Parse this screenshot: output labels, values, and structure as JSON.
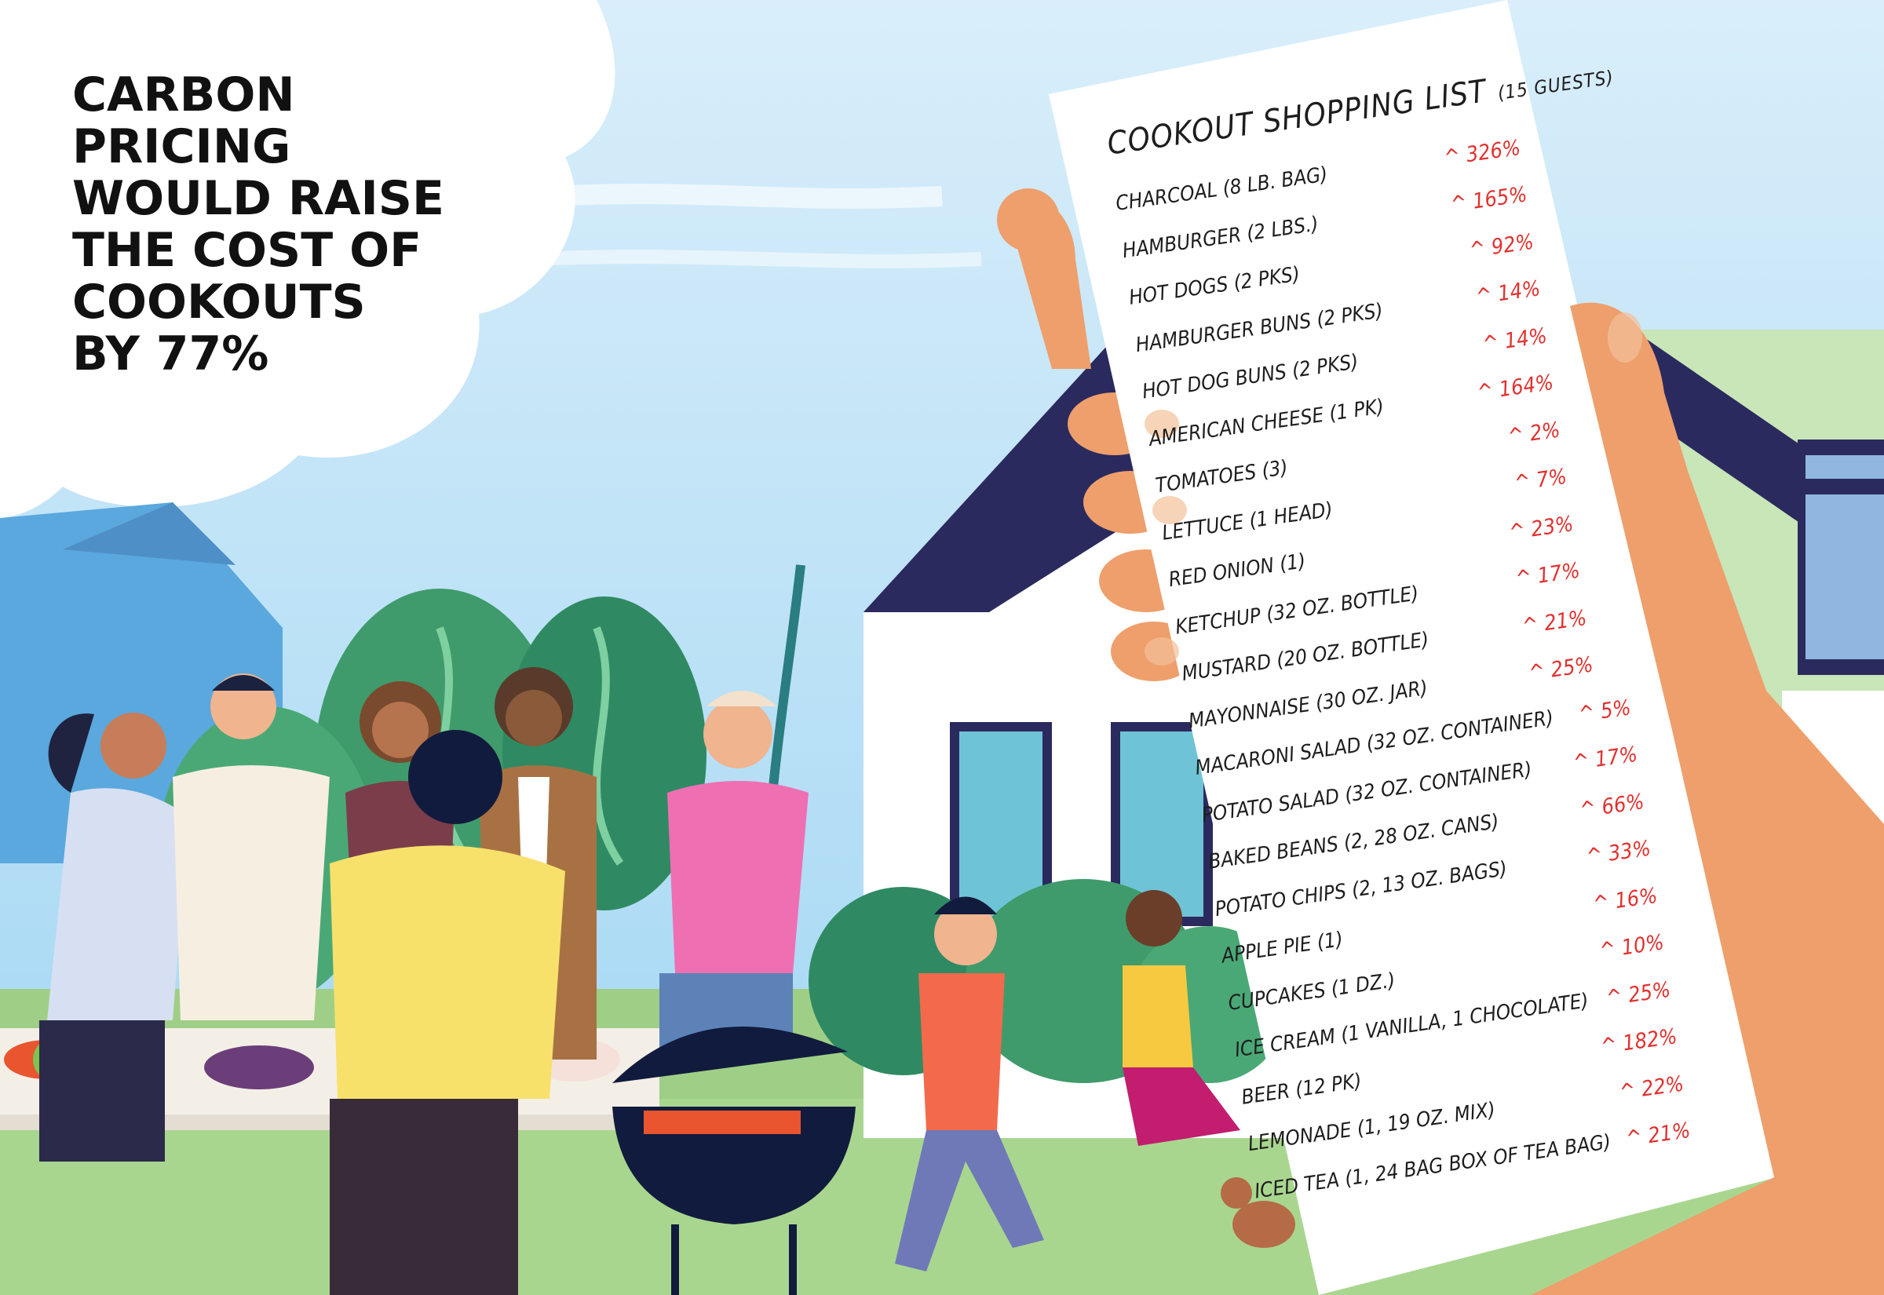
{
  "headline": {
    "lines": [
      "CARBON",
      "PRICING",
      "WOULD RAISE",
      "THE COST OF",
      "COOKOUTS",
      "BY 77%"
    ]
  },
  "shopping_list": {
    "title": "COOKOUT SHOPPING LIST",
    "subtitle": "(15 GUESTS)",
    "items": [
      {
        "name": "CHARCOAL (8 LB. BAG)",
        "change": "^ 326%"
      },
      {
        "name": "HAMBURGER (2 LBS.)",
        "change": "^ 165%"
      },
      {
        "name": "HOT DOGS (2 PKS)",
        "change": "^ 92%"
      },
      {
        "name": "HAMBURGER BUNS (2 PKS)",
        "change": "^ 14%"
      },
      {
        "name": "HOT DOG BUNS (2 PKS)",
        "change": "^ 14%"
      },
      {
        "name": "AMERICAN CHEESE (1 PK)",
        "change": "^ 164%"
      },
      {
        "name": "TOMATOES (3)",
        "change": "^ 2%"
      },
      {
        "name": "LETTUCE (1 HEAD)",
        "change": "^ 7%"
      },
      {
        "name": "RED ONION (1)",
        "change": "^ 23%"
      },
      {
        "name": "KETCHUP (32 OZ. BOTTLE)",
        "change": "^ 17%"
      },
      {
        "name": "MUSTARD (20 OZ. BOTTLE)",
        "change": "^ 21%"
      },
      {
        "name": "MAYONNAISE (30 OZ. JAR)",
        "change": "^ 25%"
      },
      {
        "name": "MACARONI SALAD (32 OZ. CONTAINER)",
        "change": "^ 5%"
      },
      {
        "name": "POTATO SALAD (32 OZ. CONTAINER)",
        "change": "^ 17%"
      },
      {
        "name": "BAKED BEANS (2, 28 OZ. CANS)",
        "change": "^ 66%"
      },
      {
        "name": "POTATO CHIPS (2, 13 OZ. BAGS)",
        "change": "^ 33%"
      },
      {
        "name": "APPLE PIE (1)",
        "change": "^ 16%"
      },
      {
        "name": "CUPCAKES (1 DZ.)",
        "change": "^ 10%"
      },
      {
        "name": "ICE CREAM (1 VANILLA, 1 CHOCOLATE)",
        "change": "^ 25%"
      },
      {
        "name": "BEER (12 PK)",
        "change": "^ 182%"
      },
      {
        "name": "LEMONADE (1, 19 OZ. MIX)",
        "change": "^ 22%"
      },
      {
        "name": "ICED TEA (1, 24 BAG BOX OF TEA BAG)",
        "change": "^ 21%"
      }
    ]
  },
  "colors": {
    "sky": "#bfe3f7",
    "grass": "#9fcf86",
    "roof": "#2b2a5e",
    "house": "#ffffff",
    "skin_hand": "#ee9f6c",
    "accent_red": "#e0312f"
  }
}
